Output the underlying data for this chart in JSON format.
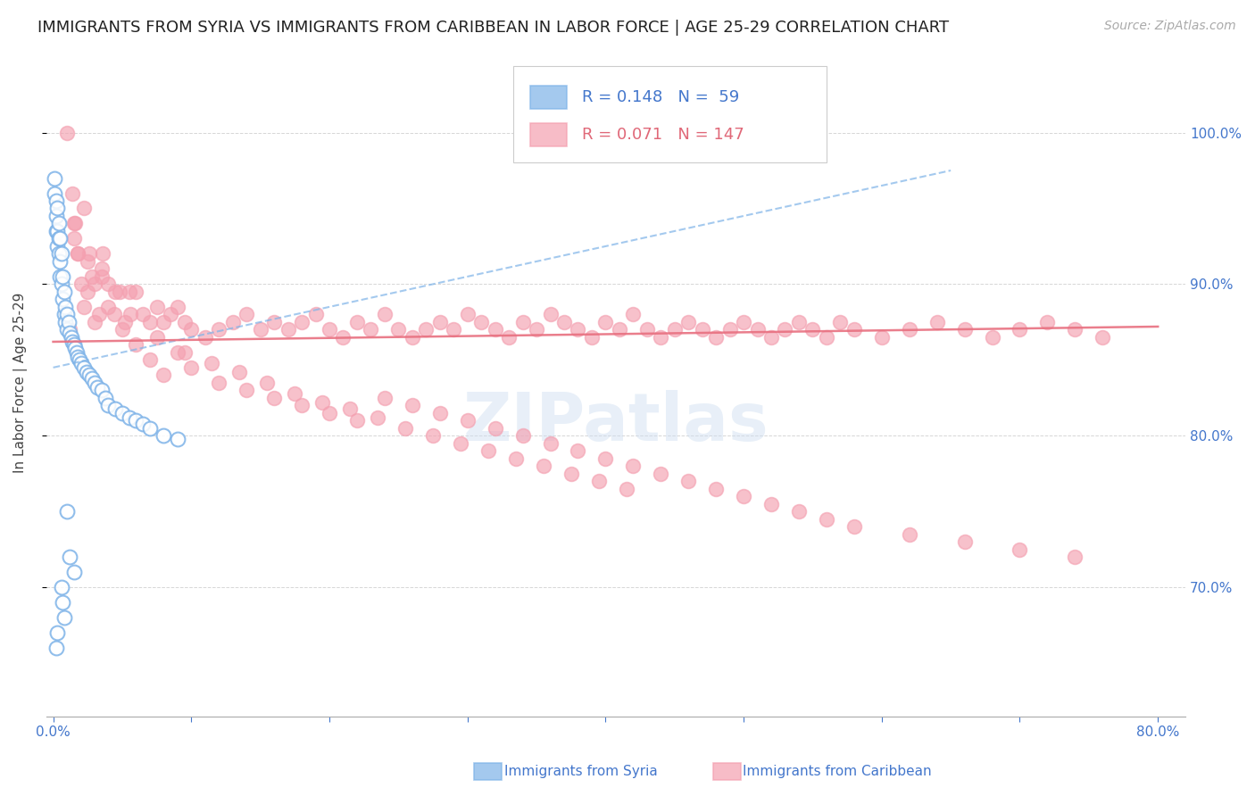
{
  "title": "IMMIGRANTS FROM SYRIA VS IMMIGRANTS FROM CARIBBEAN IN LABOR FORCE | AGE 25-29 CORRELATION CHART",
  "source": "Source: ZipAtlas.com",
  "ylabel": "In Labor Force | Age 25-29",
  "right_yticklabels": [
    "70.0%",
    "80.0%",
    "90.0%",
    "100.0%"
  ],
  "right_yticks": [
    0.7,
    0.8,
    0.9,
    1.0
  ],
  "bottom_xticks": [
    0.0,
    0.1,
    0.2,
    0.3,
    0.4,
    0.5,
    0.6,
    0.7,
    0.8
  ],
  "bottom_xticklabels": [
    "0.0%",
    "",
    "",
    "",
    "",
    "",
    "",
    "",
    "80.0%"
  ],
  "xlim": [
    -0.005,
    0.82
  ],
  "ylim": [
    0.615,
    1.055
  ],
  "syria_color": "#7eb3e8",
  "caribbean_color": "#f4a0b0",
  "syria_R": 0.148,
  "syria_N": 59,
  "caribbean_R": 0.071,
  "caribbean_N": 147,
  "legend_label_syria": "Immigrants from Syria",
  "legend_label_caribbean": "Immigrants from Caribbean",
  "background_color": "#ffffff",
  "grid_color": "#cccccc",
  "tick_color": "#4477cc",
  "title_color": "#222222",
  "title_fontsize": 13,
  "source_fontsize": 10,
  "watermark": "ZIPatlas",
  "syria_trend_color": "#7eb3e8",
  "caribbean_trend_color": "#e87080",
  "syria_x": [
    0.001,
    0.001,
    0.002,
    0.002,
    0.002,
    0.003,
    0.003,
    0.003,
    0.004,
    0.004,
    0.004,
    0.005,
    0.005,
    0.005,
    0.006,
    0.006,
    0.007,
    0.007,
    0.008,
    0.008,
    0.009,
    0.009,
    0.01,
    0.01,
    0.011,
    0.012,
    0.013,
    0.014,
    0.015,
    0.016,
    0.017,
    0.018,
    0.019,
    0.02,
    0.022,
    0.024,
    0.026,
    0.028,
    0.03,
    0.032,
    0.035,
    0.038,
    0.04,
    0.045,
    0.05,
    0.055,
    0.06,
    0.065,
    0.07,
    0.08,
    0.09,
    0.01,
    0.012,
    0.015,
    0.006,
    0.007,
    0.008,
    0.003,
    0.002
  ],
  "syria_y": [
    0.97,
    0.96,
    0.955,
    0.945,
    0.935,
    0.95,
    0.935,
    0.925,
    0.94,
    0.93,
    0.92,
    0.93,
    0.915,
    0.905,
    0.92,
    0.9,
    0.905,
    0.89,
    0.895,
    0.88,
    0.885,
    0.875,
    0.88,
    0.87,
    0.875,
    0.868,
    0.865,
    0.862,
    0.86,
    0.858,
    0.855,
    0.852,
    0.85,
    0.848,
    0.845,
    0.842,
    0.84,
    0.838,
    0.835,
    0.832,
    0.83,
    0.825,
    0.82,
    0.818,
    0.815,
    0.812,
    0.81,
    0.808,
    0.805,
    0.8,
    0.798,
    0.75,
    0.72,
    0.71,
    0.7,
    0.69,
    0.68,
    0.67,
    0.66
  ],
  "caribbean_x": [
    0.01,
    0.012,
    0.014,
    0.016,
    0.018,
    0.02,
    0.022,
    0.025,
    0.028,
    0.03,
    0.033,
    0.036,
    0.04,
    0.044,
    0.048,
    0.052,
    0.056,
    0.06,
    0.065,
    0.07,
    0.075,
    0.08,
    0.085,
    0.09,
    0.095,
    0.1,
    0.11,
    0.12,
    0.13,
    0.14,
    0.15,
    0.16,
    0.17,
    0.18,
    0.19,
    0.2,
    0.21,
    0.22,
    0.23,
    0.24,
    0.25,
    0.26,
    0.27,
    0.28,
    0.29,
    0.3,
    0.31,
    0.32,
    0.33,
    0.34,
    0.35,
    0.36,
    0.37,
    0.38,
    0.39,
    0.4,
    0.41,
    0.42,
    0.43,
    0.44,
    0.45,
    0.46,
    0.47,
    0.48,
    0.49,
    0.5,
    0.51,
    0.52,
    0.53,
    0.54,
    0.55,
    0.56,
    0.57,
    0.58,
    0.6,
    0.62,
    0.64,
    0.66,
    0.68,
    0.7,
    0.72,
    0.74,
    0.76,
    0.015,
    0.018,
    0.022,
    0.026,
    0.03,
    0.035,
    0.04,
    0.045,
    0.05,
    0.06,
    0.07,
    0.08,
    0.09,
    0.1,
    0.12,
    0.14,
    0.16,
    0.18,
    0.2,
    0.22,
    0.24,
    0.26,
    0.28,
    0.3,
    0.32,
    0.34,
    0.36,
    0.38,
    0.4,
    0.42,
    0.44,
    0.46,
    0.48,
    0.5,
    0.52,
    0.54,
    0.56,
    0.58,
    0.62,
    0.66,
    0.7,
    0.74,
    0.015,
    0.025,
    0.035,
    0.055,
    0.075,
    0.095,
    0.115,
    0.135,
    0.155,
    0.175,
    0.195,
    0.215,
    0.235,
    0.255,
    0.275,
    0.295,
    0.315,
    0.335,
    0.355,
    0.375,
    0.395,
    0.415
  ],
  "caribbean_y": [
    1.0,
    0.87,
    0.96,
    0.94,
    0.92,
    0.9,
    0.885,
    0.895,
    0.905,
    0.875,
    0.88,
    0.92,
    0.9,
    0.88,
    0.895,
    0.875,
    0.88,
    0.895,
    0.88,
    0.875,
    0.885,
    0.875,
    0.88,
    0.885,
    0.875,
    0.87,
    0.865,
    0.87,
    0.875,
    0.88,
    0.87,
    0.875,
    0.87,
    0.875,
    0.88,
    0.87,
    0.865,
    0.875,
    0.87,
    0.88,
    0.87,
    0.865,
    0.87,
    0.875,
    0.87,
    0.88,
    0.875,
    0.87,
    0.865,
    0.875,
    0.87,
    0.88,
    0.875,
    0.87,
    0.865,
    0.875,
    0.87,
    0.88,
    0.87,
    0.865,
    0.87,
    0.875,
    0.87,
    0.865,
    0.87,
    0.875,
    0.87,
    0.865,
    0.87,
    0.875,
    0.87,
    0.865,
    0.875,
    0.87,
    0.865,
    0.87,
    0.875,
    0.87,
    0.865,
    0.87,
    0.875,
    0.87,
    0.865,
    0.94,
    0.92,
    0.95,
    0.92,
    0.9,
    0.91,
    0.885,
    0.895,
    0.87,
    0.86,
    0.85,
    0.84,
    0.855,
    0.845,
    0.835,
    0.83,
    0.825,
    0.82,
    0.815,
    0.81,
    0.825,
    0.82,
    0.815,
    0.81,
    0.805,
    0.8,
    0.795,
    0.79,
    0.785,
    0.78,
    0.775,
    0.77,
    0.765,
    0.76,
    0.755,
    0.75,
    0.745,
    0.74,
    0.735,
    0.73,
    0.725,
    0.72,
    0.93,
    0.915,
    0.905,
    0.895,
    0.865,
    0.855,
    0.848,
    0.842,
    0.835,
    0.828,
    0.822,
    0.818,
    0.812,
    0.805,
    0.8,
    0.795,
    0.79,
    0.785,
    0.78,
    0.775,
    0.77,
    0.765
  ],
  "syria_trend_x": [
    0.0,
    0.65
  ],
  "syria_trend_y": [
    0.845,
    0.975
  ],
  "caribbean_trend_x": [
    0.0,
    0.8
  ],
  "caribbean_trend_y": [
    0.862,
    0.872
  ]
}
